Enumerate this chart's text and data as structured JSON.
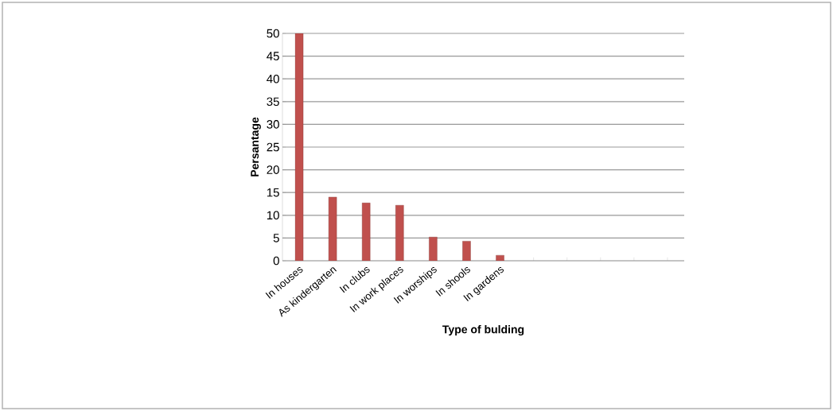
{
  "chart_data": {
    "type": "bar",
    "xlabel": "Type of bulding",
    "ylabel": "Persantage",
    "categories": [
      "In houses",
      "As kindergarten",
      "In clubs",
      "In work places",
      "In worships",
      "In shools",
      "In gardens",
      null,
      null,
      null,
      null,
      null
    ],
    "values": [
      50,
      14,
      12.7,
      12.2,
      5.2,
      4.3,
      1.2,
      null,
      null,
      null,
      null,
      null
    ],
    "color": "#c0504d",
    "ylim": [
      0,
      50
    ],
    "yticks": [
      0,
      5,
      10,
      15,
      20,
      25,
      30,
      35,
      40,
      45,
      50
    ],
    "grid": "y"
  }
}
